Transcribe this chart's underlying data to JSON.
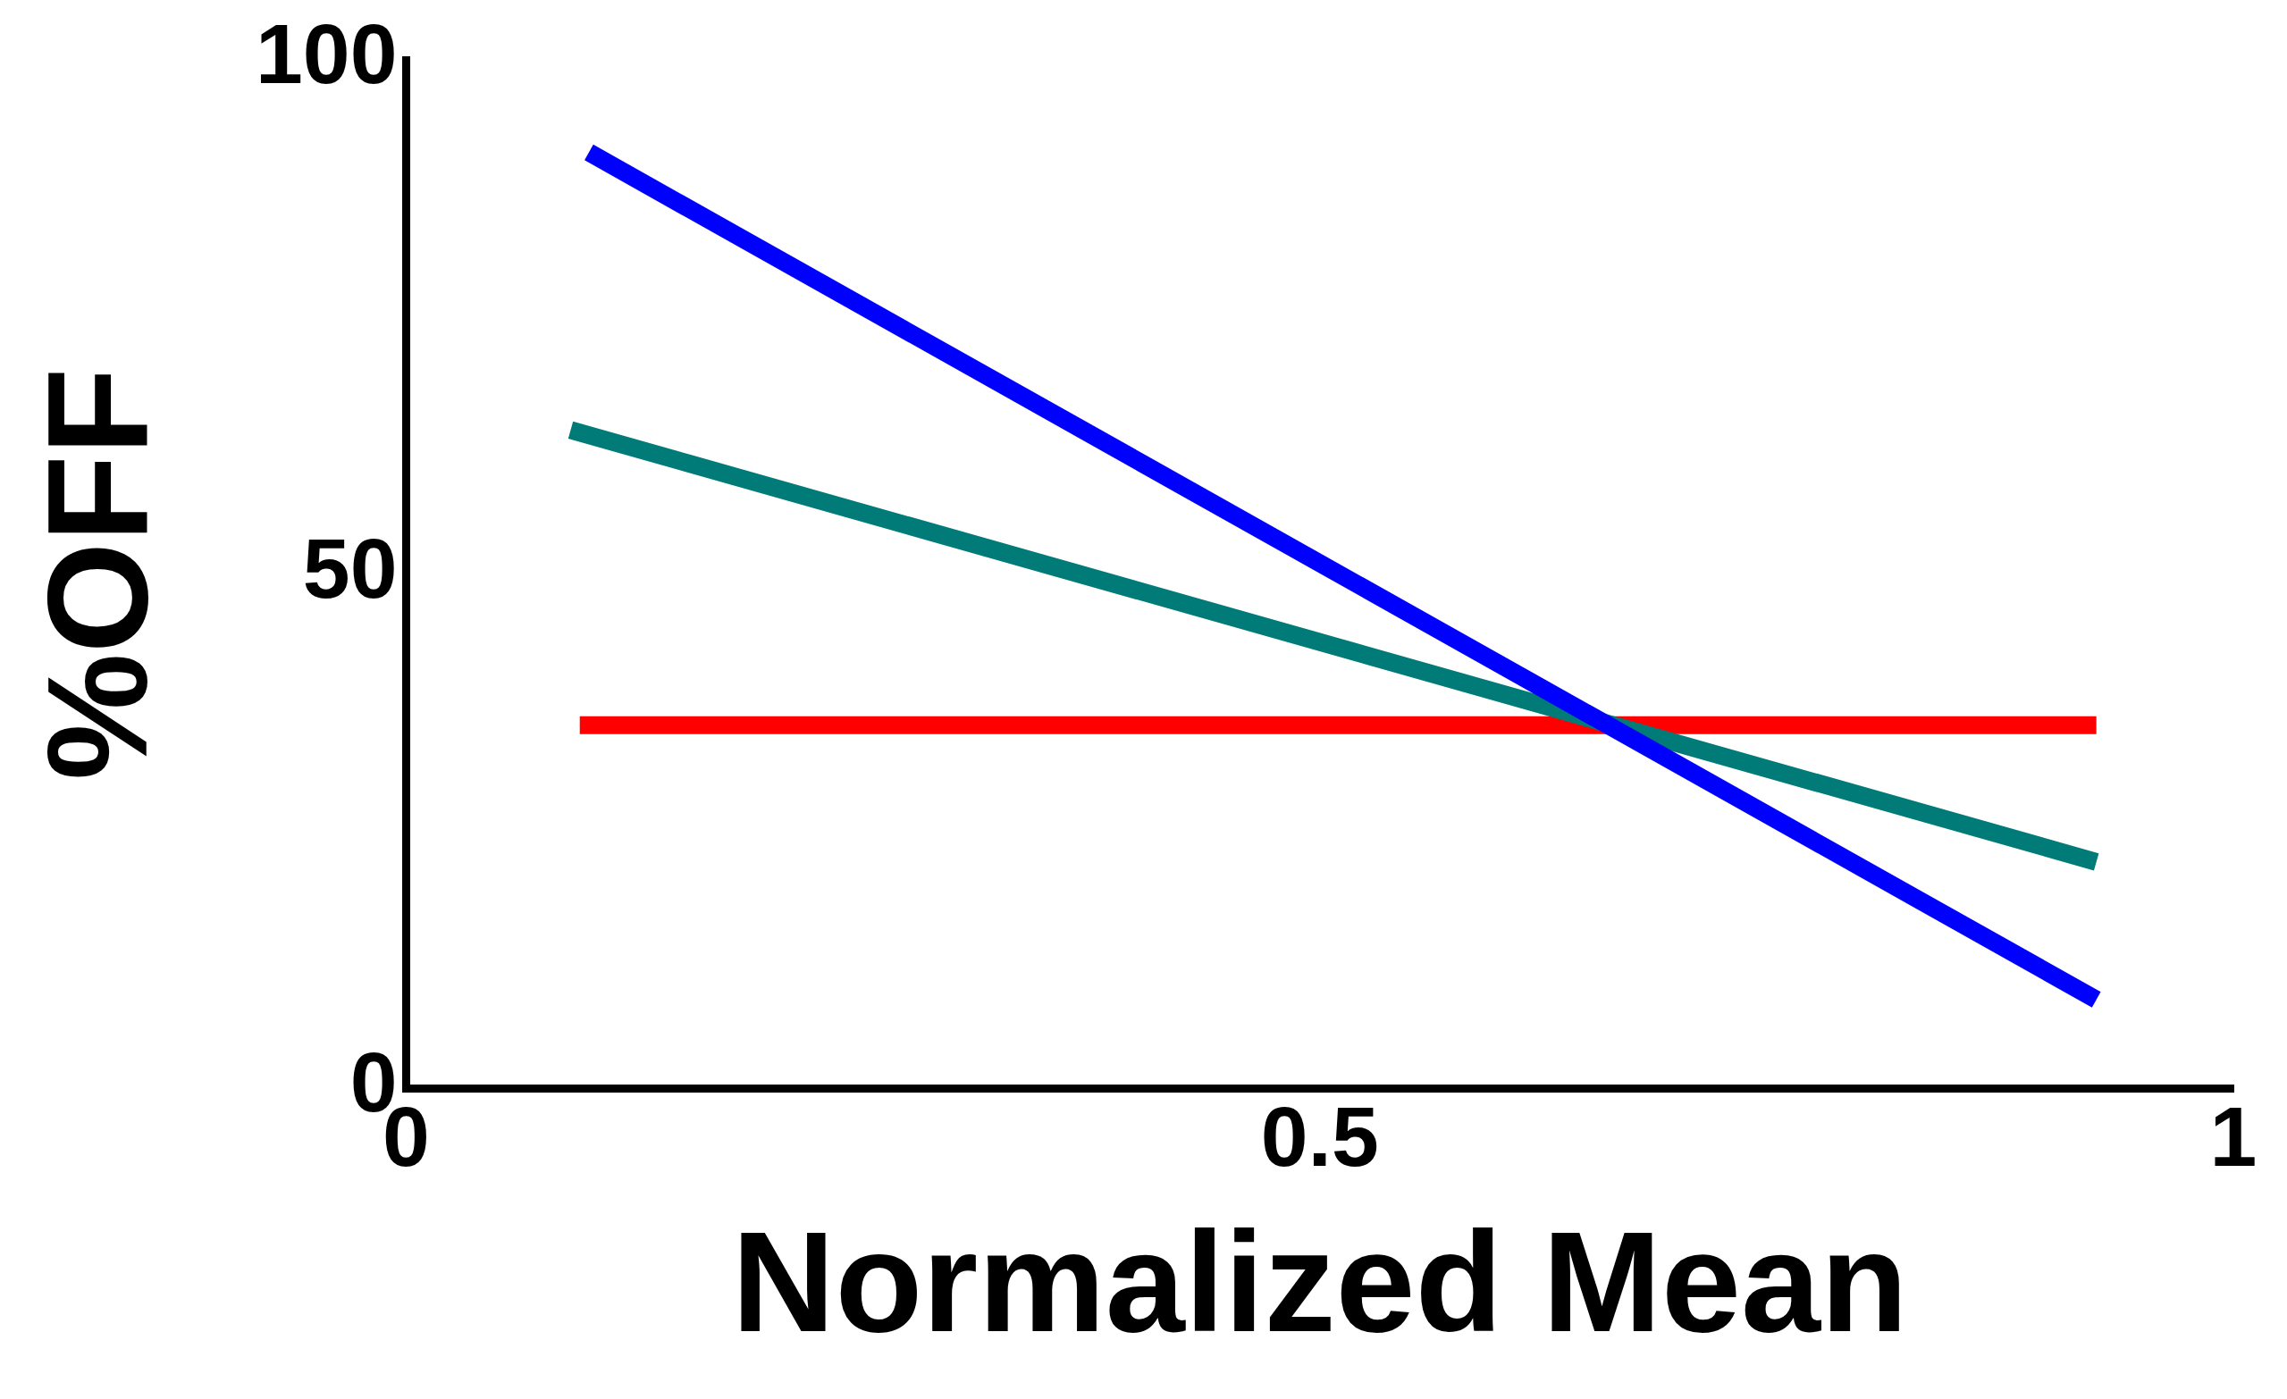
{
  "chart_data": {
    "type": "line",
    "xlabel": "Normalized Mean",
    "ylabel": "%OFF",
    "xlim": [
      0,
      1
    ],
    "ylim": [
      0,
      100
    ],
    "xticks": [
      0,
      0.5,
      1
    ],
    "yticks": [
      0,
      50,
      100
    ],
    "grid": false,
    "legend": false,
    "marker": "none",
    "line_style": "solid",
    "series": [
      {
        "color": "#0000ff",
        "x": [
          0.1,
          0.925
        ],
        "values": [
          91,
          8.6
        ]
      },
      {
        "color": "#007b78",
        "x": [
          0.09,
          0.925
        ],
        "values": [
          64,
          22
        ]
      },
      {
        "color": "#ff0000",
        "x": [
          0.095,
          0.925
        ],
        "values": [
          35.3,
          35.3
        ]
      }
    ]
  }
}
